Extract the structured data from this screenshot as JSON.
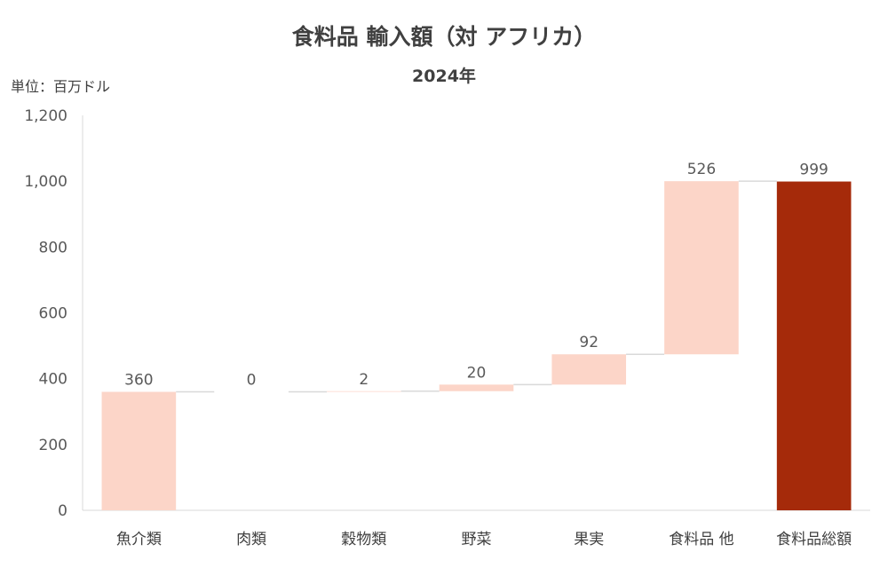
{
  "chart_data": {
    "type": "bar",
    "subtype": "waterfall",
    "title": "食料品 輸入額（対 アフリカ）",
    "subtitle": "2024年",
    "unit_label": "単位：百万ドル",
    "categories": [
      "魚介類",
      "肉類",
      "穀物類",
      "野菜",
      "果実",
      "食料品 他",
      "食料品総額"
    ],
    "values": [
      360,
      0,
      2,
      20,
      92,
      526,
      999
    ],
    "data_labels": [
      "360",
      "0",
      "2",
      "20",
      "92",
      "526",
      "999"
    ],
    "total_index": 6,
    "ylim": [
      0,
      1200
    ],
    "yticks": [
      0,
      200,
      400,
      600,
      800,
      1000,
      1200
    ],
    "ytick_labels": [
      "0",
      "200",
      "400",
      "600",
      "800",
      "1,000",
      "1,200"
    ],
    "grid": false,
    "colors": {
      "increment": "#fcd5c8",
      "total": "#a52a0a",
      "connector": "#d9d9d9",
      "axis": "#d9d9d9"
    }
  }
}
